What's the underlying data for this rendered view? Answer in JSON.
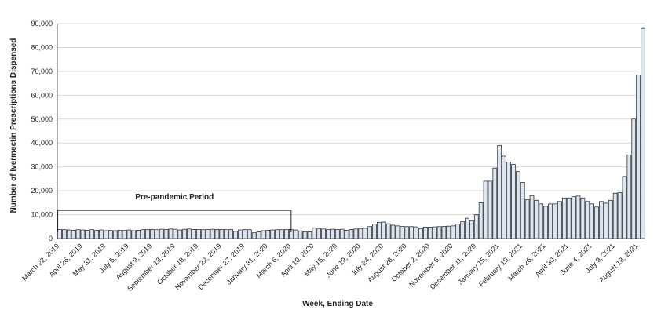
{
  "chart_data": {
    "type": "bar",
    "x_label": "Week, Ending Date",
    "y_label": "Number of Ivermectin Prescriptions Dispensed",
    "annotation": "Pre-pandemic Period",
    "color": "#dce6f2",
    "edge_color": "#1a1a1a",
    "grid": true,
    "ylim": [
      0,
      90000
    ],
    "yticks": [
      0,
      {
        "value": 10000,
        "label": "10,000"
      },
      {
        "value": 20000,
        "label": "20,000"
      },
      {
        "value": 30000,
        "label": "30,000"
      },
      {
        "value": 40000,
        "label": "40,000"
      },
      {
        "value": 50000,
        "label": "50,000"
      },
      {
        "value": 60000,
        "label": "60,000"
      },
      {
        "value": 70000,
        "label": "70,000"
      },
      {
        "value": 80000,
        "label": "80,000"
      },
      {
        "value": 90000,
        "label": "90,000"
      }
    ],
    "categories": [
      "March 22, 2019",
      null,
      null,
      null,
      null,
      "April 26, 2019",
      null,
      null,
      null,
      null,
      "May 31, 2019",
      null,
      null,
      null,
      null,
      "July 5, 2019",
      null,
      null,
      null,
      null,
      "August 9, 2019",
      null,
      null,
      null,
      null,
      "September 13, 2019",
      null,
      null,
      null,
      null,
      "October 18, 2019",
      null,
      null,
      null,
      null,
      "November 22, 2019",
      null,
      null,
      null,
      null,
      "December 27, 2019",
      null,
      null,
      null,
      null,
      "January 31, 2020",
      null,
      null,
      null,
      null,
      "March 6, 2020",
      null,
      null,
      null,
      null,
      "April 10, 2020",
      null,
      null,
      null,
      null,
      "May 15, 2020",
      null,
      null,
      null,
      null,
      "June 19, 2020",
      null,
      null,
      null,
      null,
      "July 24, 2020",
      null,
      null,
      null,
      null,
      "August 28, 2020",
      null,
      null,
      null,
      null,
      "October 2, 2020",
      null,
      null,
      null,
      null,
      "November 6, 2020",
      null,
      null,
      null,
      null,
      "December 11, 2020",
      null,
      null,
      null,
      null,
      "January 15, 2021",
      null,
      null,
      null,
      null,
      "February 19, 2021",
      null,
      null,
      null,
      null,
      "March 26, 2021",
      null,
      null,
      null,
      null,
      "April 30, 2021",
      null,
      null,
      null,
      null,
      "June 4, 2021",
      null,
      null,
      null,
      null,
      "July 9, 2021",
      null,
      null,
      null,
      null,
      "August 13, 2021",
      null
    ],
    "values": [
      3800,
      3700,
      3600,
      3500,
      3700,
      3600,
      3500,
      3700,
      3400,
      3600,
      3300,
      3400,
      3300,
      3500,
      3400,
      3600,
      3300,
      3500,
      3700,
      3800,
      3800,
      3700,
      3900,
      3800,
      4000,
      3900,
      3600,
      3900,
      4000,
      3800,
      3800,
      3700,
      3800,
      3900,
      3800,
      3800,
      3700,
      3800,
      3000,
      3600,
      3800,
      3700,
      2400,
      2800,
      3300,
      3500,
      3600,
      3700,
      3700,
      3800,
      3800,
      3600,
      3200,
      2900,
      2800,
      4500,
      4200,
      4000,
      3800,
      3900,
      3800,
      3900,
      3500,
      3800,
      4000,
      4200,
      4300,
      5000,
      6000,
      6800,
      6900,
      6200,
      5600,
      5300,
      5100,
      5000,
      5000,
      4900,
      4200,
      4800,
      4800,
      4900,
      5000,
      5100,
      5200,
      5300,
      6000,
      7000,
      8500,
      7500,
      10000,
      15000,
      24000,
      24000,
      29500,
      39000,
      34500,
      32000,
      31000,
      28000,
      23500,
      16200,
      18000,
      16000,
      14500,
      13500,
      14500,
      14500,
      15500,
      17000,
      17000,
      17500,
      17800,
      17000,
      15500,
      14500,
      13200,
      15500,
      14800,
      16000,
      19000,
      19200,
      26000,
      35000,
      50000,
      68500,
      88000
    ]
  }
}
